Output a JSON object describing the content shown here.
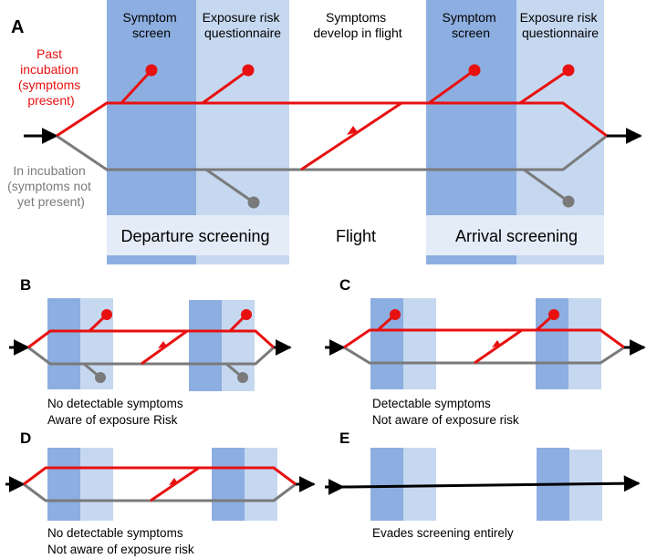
{
  "colors": {
    "symptom_band": "#8CAEE0",
    "exposure_band": "#C6D8F0",
    "label_bg": "#E4ECF8",
    "red": "#E81010",
    "gray": "#7A7A7A",
    "black": "#000000"
  },
  "panel_a": {
    "letter": "A",
    "header_symptom_dep": [
      "Symptom",
      "screen"
    ],
    "header_exposure_dep": [
      "Exposure risk",
      "questionnaire"
    ],
    "header_flight": [
      "Symptoms",
      "develop in flight"
    ],
    "header_symptom_arr": [
      "Symptom",
      "screen"
    ],
    "header_exposure_arr": [
      "Exposure risk",
      "questionnaire"
    ],
    "label_past": [
      "Past",
      "incubation",
      "(symptoms",
      "present)"
    ],
    "label_incub": [
      "In incubation",
      "(symptoms not",
      "yet present)"
    ],
    "label_departure": "Departure screening",
    "label_flight": "Flight",
    "label_arrival": "Arrival screening"
  },
  "panel_b": {
    "letter": "B",
    "caption": [
      "No detectable symptoms",
      "Aware of exposure Risk"
    ]
  },
  "panel_c": {
    "letter": "C",
    "caption": [
      "Detectable symptoms",
      "Not aware of exposure risk"
    ]
  },
  "panel_d": {
    "letter": "D",
    "caption": [
      "No detectable symptoms",
      "Not aware of exposure risk"
    ]
  },
  "panel_e": {
    "letter": "E",
    "caption": [
      "Evades screening entirely"
    ]
  }
}
